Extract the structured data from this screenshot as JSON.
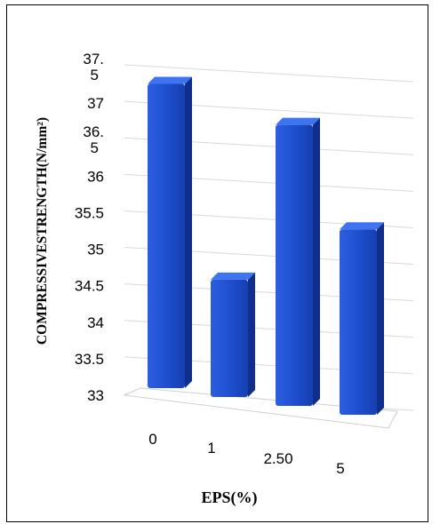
{
  "chart_data": {
    "type": "bar",
    "style": "3d-column",
    "categories": [
      "0",
      "1",
      "2.50",
      "5"
    ],
    "values": [
      37.25,
      34.6,
      36.75,
      35.35
    ],
    "ylim": [
      33,
      37.5
    ],
    "yticks": [
      "33",
      "33.5",
      "34",
      "34.5",
      "35",
      "35.5",
      "36",
      "36.\n5",
      "37",
      "37.\n5"
    ],
    "xlabel": "EPS(%)",
    "ylabel": "COMPRESSIVESTRENGTH(N/mm²)",
    "grid": true,
    "bar_color": "#1f4fd0"
  }
}
